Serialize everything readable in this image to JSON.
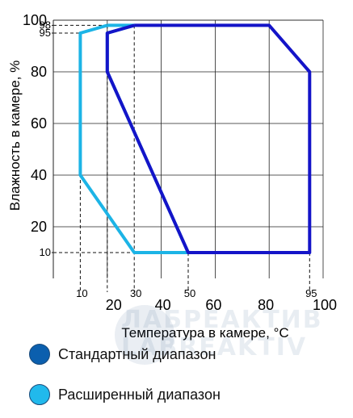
{
  "chart_data": {
    "type": "area",
    "xlabel": "Температура в камере, °C",
    "ylabel": "Влажность в камере, %",
    "xlim": [
      0,
      100
    ],
    "ylim": [
      0,
      100
    ],
    "x_ticks": [
      {
        "value": 20,
        "label": "20"
      },
      {
        "value": 40,
        "label": "40"
      },
      {
        "value": 60,
        "label": "60"
      },
      {
        "value": 80,
        "label": "80"
      },
      {
        "value": 100,
        "label": "100"
      }
    ],
    "x_minor_ticks": [
      {
        "value": 10,
        "label": "10"
      },
      {
        "value": 30,
        "label": "30"
      },
      {
        "value": 50,
        "label": "50"
      },
      {
        "value": 95,
        "label": "95"
      }
    ],
    "y_ticks": [
      {
        "value": 10,
        "label": "10",
        "minor": true
      },
      {
        "value": 20,
        "label": "20",
        "minor": false
      },
      {
        "value": 40,
        "label": "40",
        "minor": false
      },
      {
        "value": 60,
        "label": "60",
        "minor": false
      },
      {
        "value": 80,
        "label": "80",
        "minor": false
      },
      {
        "value": 95,
        "label": "95",
        "minor": true
      },
      {
        "value": 98,
        "label": "98",
        "minor": true
      },
      {
        "value": 100,
        "label": "100",
        "minor": false
      }
    ],
    "grid": true,
    "reference_lines": {
      "vertical": [
        {
          "x": 10,
          "y": 95
        },
        {
          "x": 20,
          "y": 98
        },
        {
          "x": 30,
          "y": 98
        },
        {
          "x": 50,
          "y": 10
        },
        {
          "x": 95,
          "y": 10
        }
      ],
      "horizontal": [
        {
          "y": 10,
          "x": 30
        },
        {
          "y": 95,
          "x": 10
        },
        {
          "y": 98,
          "x": 20
        }
      ]
    },
    "series": [
      {
        "name": "Стандартный диапазон",
        "color": "#1414c8",
        "points": [
          [
            30,
            98
          ],
          [
            80,
            98
          ],
          [
            95,
            80
          ],
          [
            95,
            10
          ],
          [
            50,
            10
          ],
          [
            20,
            80
          ],
          [
            20,
            95
          ],
          [
            30,
            98
          ]
        ]
      },
      {
        "name": "Расширенный диапазон",
        "color": "#1cb4e6",
        "points": [
          [
            20,
            98
          ],
          [
            30,
            98
          ],
          [
            20,
            95
          ],
          [
            20,
            80
          ],
          [
            50,
            10
          ],
          [
            30,
            10
          ],
          [
            10,
            40
          ],
          [
            10,
            95
          ],
          [
            20,
            98
          ]
        ]
      }
    ],
    "legend": [
      {
        "label": "Стандартный диапазон",
        "color": "#0b5fae"
      },
      {
        "label": "Расширенный диапазон",
        "color": "#21b9ec"
      }
    ],
    "legend_placement": "bottom"
  },
  "watermark": {
    "line1": "ЛАБРЕАКТИВ",
    "line2": "LABREAKTIV"
  }
}
